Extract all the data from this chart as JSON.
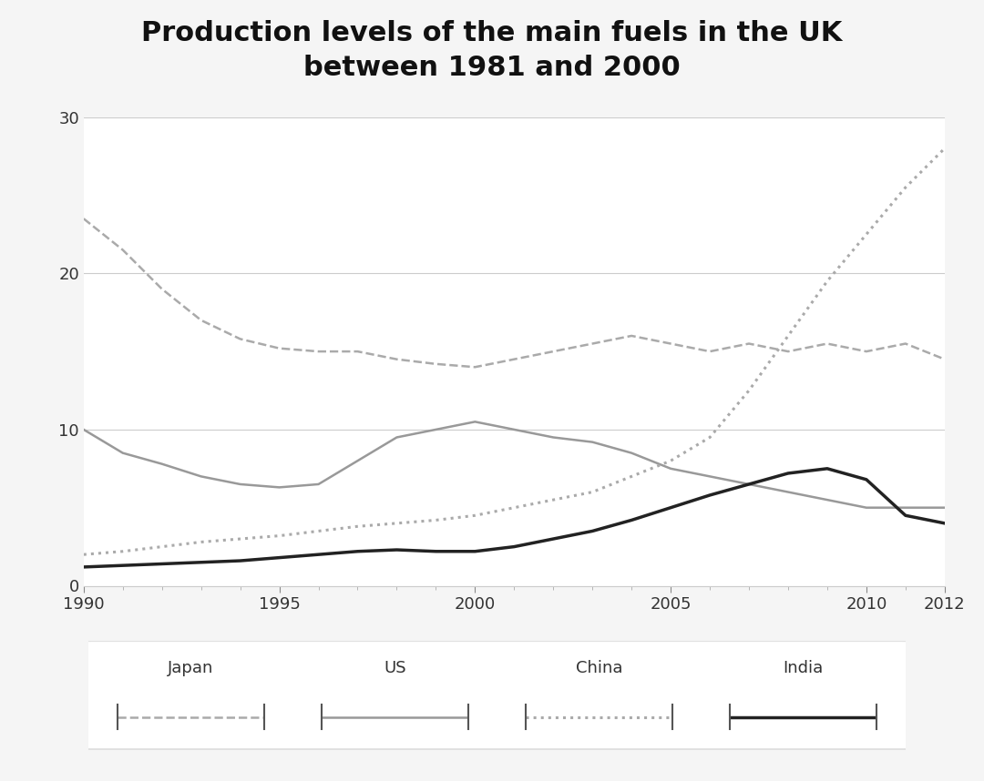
{
  "title": "Production levels of the main fuels in the UK\nbetween 1981 and 2000",
  "xlim": [
    1990,
    2012
  ],
  "ylim": [
    0,
    30
  ],
  "yticks": [
    0,
    10,
    20,
    30
  ],
  "xticks": [
    1990,
    1995,
    2000,
    2005,
    2010,
    2012
  ],
  "background_color": "#f5f5f5",
  "plot_bg": "#ffffff",
  "series": {
    "Japan": {
      "x": [
        1990,
        1991,
        1992,
        1993,
        1994,
        1995,
        1996,
        1997,
        1998,
        1999,
        2000,
        2001,
        2002,
        2003,
        2004,
        2005,
        2006,
        2007,
        2008,
        2009,
        2010,
        2011,
        2012
      ],
      "y": [
        23.5,
        21.5,
        19.0,
        17.0,
        15.8,
        15.2,
        15.0,
        15.0,
        14.5,
        14.2,
        14.0,
        14.5,
        15.0,
        15.5,
        16.0,
        15.5,
        15.0,
        15.5,
        15.0,
        15.5,
        15.0,
        15.5,
        14.5
      ],
      "color": "#aaaaaa",
      "linestyle": "--",
      "linewidth": 1.8
    },
    "US": {
      "x": [
        1990,
        1991,
        1992,
        1993,
        1994,
        1995,
        1996,
        1997,
        1998,
        1999,
        2000,
        2001,
        2002,
        2003,
        2004,
        2005,
        2006,
        2007,
        2008,
        2009,
        2010,
        2011,
        2012
      ],
      "y": [
        10.0,
        8.5,
        7.8,
        7.0,
        6.5,
        6.3,
        6.5,
        8.0,
        9.5,
        10.0,
        10.5,
        10.0,
        9.5,
        9.2,
        8.5,
        7.5,
        7.0,
        6.5,
        6.0,
        5.5,
        5.0,
        5.0,
        5.0
      ],
      "color": "#999999",
      "linestyle": "-",
      "linewidth": 1.8
    },
    "China": {
      "x": [
        1990,
        1991,
        1992,
        1993,
        1994,
        1995,
        1996,
        1997,
        1998,
        1999,
        2000,
        2001,
        2002,
        2003,
        2004,
        2005,
        2006,
        2007,
        2008,
        2009,
        2010,
        2011,
        2012
      ],
      "y": [
        2.0,
        2.2,
        2.5,
        2.8,
        3.0,
        3.2,
        3.5,
        3.8,
        4.0,
        4.2,
        4.5,
        5.0,
        5.5,
        6.0,
        7.0,
        8.0,
        9.5,
        12.5,
        16.0,
        19.5,
        22.5,
        25.5,
        28.0
      ],
      "color": "#aaaaaa",
      "linestyle": ":",
      "linewidth": 2.2
    },
    "India": {
      "x": [
        1990,
        1991,
        1992,
        1993,
        1994,
        1995,
        1996,
        1997,
        1998,
        1999,
        2000,
        2001,
        2002,
        2003,
        2004,
        2005,
        2006,
        2007,
        2008,
        2009,
        2010,
        2011,
        2012
      ],
      "y": [
        1.2,
        1.3,
        1.4,
        1.5,
        1.6,
        1.8,
        2.0,
        2.2,
        2.3,
        2.2,
        2.2,
        2.5,
        3.0,
        3.5,
        4.2,
        5.0,
        5.8,
        6.5,
        7.2,
        7.5,
        6.8,
        4.5,
        4.0
      ],
      "color": "#222222",
      "linestyle": "-",
      "linewidth": 2.5
    }
  },
  "legend_labels": [
    "Japan",
    "US",
    "China",
    "India"
  ],
  "title_fontsize": 22,
  "tick_fontsize": 13,
  "legend_fontsize": 13
}
